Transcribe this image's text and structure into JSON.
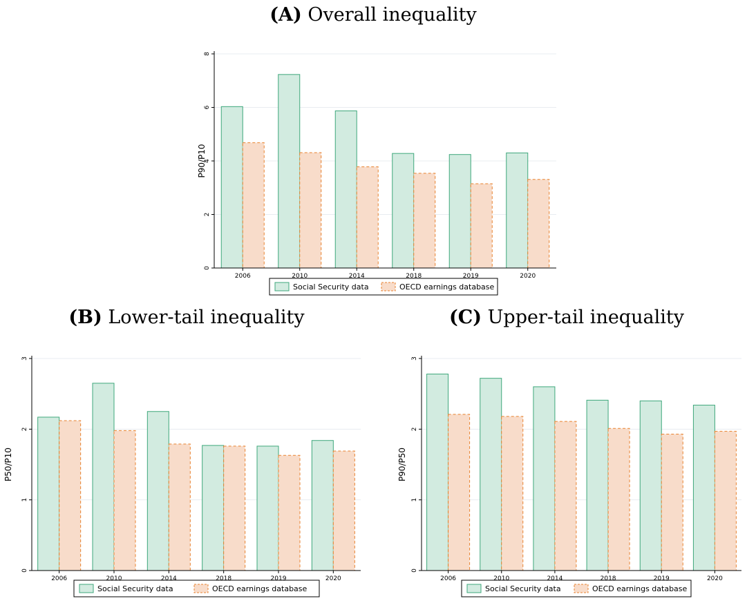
{
  "colors": {
    "ss_fill": "#d2ebe0",
    "ss_stroke": "#3ea77b",
    "oecd_fill": "#f8dcca",
    "oecd_stroke": "#e8822f",
    "grid": "#e8ecf0",
    "axis": "#000000"
  },
  "legend": {
    "ss_label": "Social Security data",
    "oecd_label": "OECD earnings database"
  },
  "chart_data": [
    {
      "type": "bar",
      "panel_label": "(A)",
      "title": "Overall inequality",
      "xlabel": "",
      "ylabel": "P90/P10",
      "categories": [
        "2006",
        "2010",
        "2014",
        "2018",
        "2019",
        "2020"
      ],
      "ylim": [
        0,
        8
      ],
      "yticks": [
        0,
        2,
        4,
        6,
        8
      ],
      "grid": true,
      "legend_position": "bottom",
      "series": [
        {
          "name": "Social Security data",
          "values": [
            6.03,
            7.23,
            5.87,
            4.28,
            4.24,
            4.3
          ]
        },
        {
          "name": "OECD earnings database",
          "values": [
            4.68,
            4.31,
            3.78,
            3.54,
            3.15,
            3.31
          ]
        }
      ]
    },
    {
      "type": "bar",
      "panel_label": "(B)",
      "title": "Lower-tail inequality",
      "xlabel": "",
      "ylabel": "P50/P10",
      "categories": [
        "2006",
        "2010",
        "2014",
        "2018",
        "2019",
        "2020"
      ],
      "ylim": [
        0,
        3
      ],
      "yticks": [
        0,
        1,
        2,
        3
      ],
      "grid": true,
      "legend_position": "bottom",
      "series": [
        {
          "name": "Social Security data",
          "values": [
            2.17,
            2.65,
            2.25,
            1.77,
            1.76,
            1.84
          ]
        },
        {
          "name": "OECD earnings database",
          "values": [
            2.12,
            1.98,
            1.79,
            1.76,
            1.63,
            1.69
          ]
        }
      ]
    },
    {
      "type": "bar",
      "panel_label": "(C)",
      "title": "Upper-tail inequality",
      "xlabel": "",
      "ylabel": "P90/P50",
      "categories": [
        "2006",
        "2010",
        "2014",
        "2018",
        "2019",
        "2020"
      ],
      "ylim": [
        0,
        3
      ],
      "yticks": [
        0,
        1,
        2,
        3
      ],
      "grid": true,
      "legend_position": "bottom",
      "series": [
        {
          "name": "Social Security data",
          "values": [
            2.78,
            2.72,
            2.6,
            2.41,
            2.4,
            2.34
          ]
        },
        {
          "name": "OECD earnings database",
          "values": [
            2.21,
            2.18,
            2.11,
            2.01,
            1.93,
            1.97
          ]
        }
      ]
    }
  ]
}
